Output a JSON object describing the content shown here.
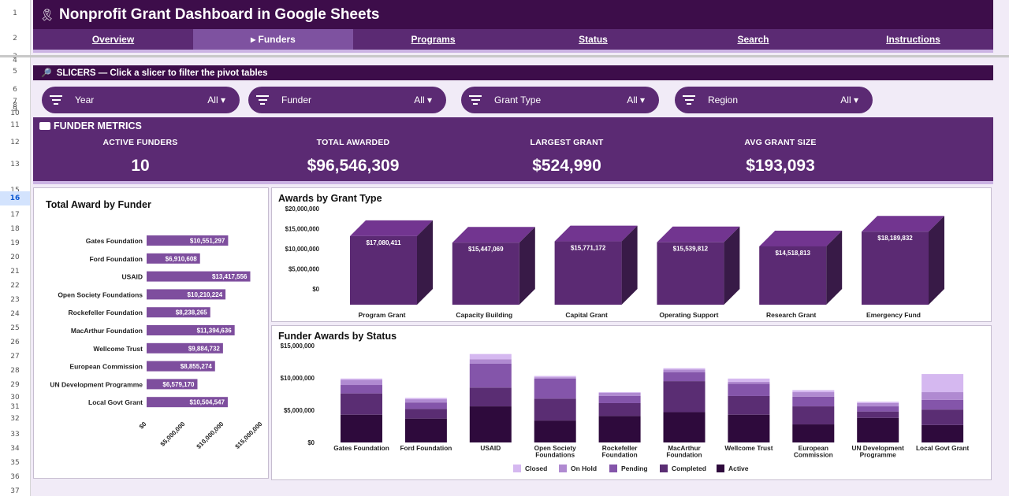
{
  "row_numbers": [
    "1",
    "2",
    "3",
    "4",
    "5",
    "6",
    "7",
    "8",
    "9",
    "10",
    "11",
    "12",
    "13",
    "15",
    "16",
    "17",
    "18",
    "19",
    "20",
    "21",
    "22",
    "23",
    "24",
    "25",
    "26",
    "27",
    "28",
    "29",
    "30",
    "31",
    "32",
    "33",
    "34",
    "35",
    "36",
    "37"
  ],
  "title": "Nonprofit Grant Dashboard in Google Sheets",
  "tabs": [
    {
      "label": "Overview"
    },
    {
      "label": "▸ Funders"
    },
    {
      "label": "Programs"
    },
    {
      "label": "Status"
    },
    {
      "label": "Search"
    },
    {
      "label": "Instructions"
    }
  ],
  "slicers_header": "SLICERS — Click a slicer to filter the pivot tables",
  "slicers": [
    {
      "label": "Year",
      "value": "All ▾"
    },
    {
      "label": "Funder",
      "value": "All ▾"
    },
    {
      "label": "Grant Type",
      "value": "All ▾"
    },
    {
      "label": "Region",
      "value": "All ▾"
    }
  ],
  "metrics": {
    "title": "FUNDER METRICS",
    "items": [
      {
        "label": "ACTIVE FUNDERS",
        "value": "10"
      },
      {
        "label": "TOTAL AWARDED",
        "value": "$96,546,309"
      },
      {
        "label": "LARGEST GRANT",
        "value": "$524,990"
      },
      {
        "label": "AVG GRANT SIZE",
        "value": "$193,093"
      }
    ]
  },
  "colors": {
    "dark": "#3d0d4a",
    "primary": "#5b2a73",
    "bar": "#7e4e9e",
    "status": [
      "#d5b8f0",
      "#b08ad1",
      "#8455aa",
      "#5a2d73",
      "#2e0a3c"
    ]
  },
  "chart_data": [
    {
      "type": "bar",
      "orientation": "horizontal",
      "title": "Total Award by Funder",
      "categories": [
        "Gates Foundation",
        "Ford Foundation",
        "USAID",
        "Open Society Foundations",
        "Rockefeller Foundation",
        "MacArthur Foundation",
        "Wellcome Trust",
        "European Commission",
        "UN Development Programme",
        "Local Govt Grant"
      ],
      "values": [
        10551297,
        6910608,
        13417556,
        10210224,
        8238265,
        11394636,
        9884732,
        8855274,
        6579170,
        10504547
      ],
      "data_labels": [
        "$10,551,297",
        "$6,910,608",
        "$13,417,556",
        "$10,210,224",
        "$8,238,265",
        "$11,394,636",
        "$9,884,732",
        "$8,855,274",
        "$6,579,170",
        "$10,504,547"
      ],
      "xlim": [
        0,
        15000000
      ],
      "xticks": [
        "$0",
        "$5,000,000",
        "$10,000,000",
        "$15,000,000"
      ]
    },
    {
      "type": "bar",
      "title": "Awards by Grant Type",
      "categories": [
        "Program Grant",
        "Capacity Building",
        "Capital Grant",
        "Operating Support",
        "Research Grant",
        "Emergency Fund"
      ],
      "values": [
        17080411,
        15447069,
        15771172,
        15539812,
        14518813,
        18189832
      ],
      "data_labels": [
        "$17,080,411",
        "$15,447,069",
        "$15,771,172",
        "$15,539,812",
        "$14,518,813",
        "$18,189,832"
      ],
      "ylim": [
        0,
        20000000
      ],
      "yticks": [
        "$20,000,000",
        "$15,000,000",
        "$10,000,000",
        "$5,000,000",
        "$0"
      ]
    },
    {
      "type": "bar",
      "stacked": true,
      "title": "Funder Awards by Status",
      "categories": [
        "Gates Foundation",
        "Ford Foundation",
        "USAID",
        "Open Society Foundations",
        "Rockefeller Foundation",
        "MacArthur Foundation",
        "Wellcome Trust",
        "European Commission",
        "UN Development Programme",
        "Local Govt Grant"
      ],
      "series": [
        {
          "name": "Active",
          "values": [
            4300000,
            3700000,
            5600000,
            3400000,
            4100000,
            4700000,
            4300000,
            2800000,
            3800000,
            2700000
          ]
        },
        {
          "name": "Completed",
          "values": [
            3300000,
            1500000,
            2900000,
            3400000,
            2000000,
            4800000,
            2900000,
            2800000,
            1000000,
            2400000
          ]
        },
        {
          "name": "Pending",
          "values": [
            1300000,
            1000000,
            3700000,
            3100000,
            1100000,
            1400000,
            1900000,
            1500000,
            800000,
            1500000
          ]
        },
        {
          "name": "On Hold",
          "values": [
            800000,
            500000,
            700000,
            200000,
            500000,
            400000,
            300000,
            700000,
            500000,
            1200000
          ]
        },
        {
          "name": "Closed",
          "values": [
            200000,
            200000,
            800000,
            200000,
            100000,
            200000,
            500000,
            300000,
            200000,
            2800000
          ]
        }
      ],
      "ylim": [
        0,
        15000000
      ],
      "yticks": [
        "$15,000,000",
        "$10,000,000",
        "$5,000,000",
        "$0"
      ],
      "legend": [
        "Closed",
        "On Hold",
        "Pending",
        "Completed",
        "Active"
      ],
      "legend_position": "bottom"
    }
  ]
}
